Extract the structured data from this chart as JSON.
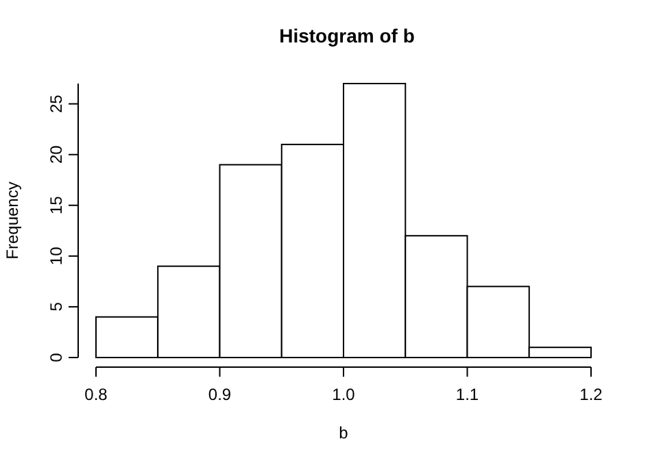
{
  "chart_data": {
    "type": "histogram",
    "title": "Histogram of b",
    "xlabel": "b",
    "ylabel": "Frequency",
    "bins": [
      0.8,
      0.85,
      0.9,
      0.95,
      1.0,
      1.05,
      1.1,
      1.15,
      1.2
    ],
    "values": [
      4,
      9,
      19,
      21,
      27,
      12,
      7,
      1
    ],
    "color": "#ffffff",
    "xlim": [
      0.8,
      1.2
    ],
    "xticks": [
      0.8,
      0.9,
      {
        "value": 1.0,
        "label": "1.0"
      },
      1.1,
      1.2
    ],
    "ylim": [
      0,
      27
    ],
    "yticks": [
      0,
      5,
      10,
      15,
      20,
      25
    ],
    "grid": false
  }
}
